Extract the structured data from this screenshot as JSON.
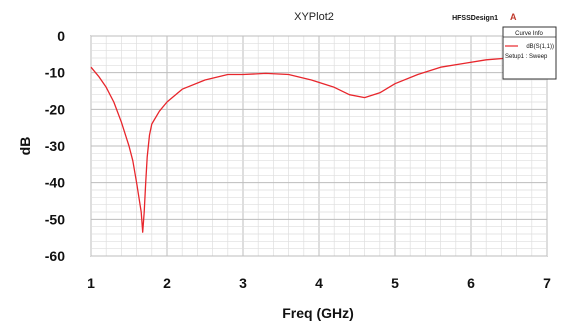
{
  "plot_title": "XYPlot2",
  "design_name": "HFSSDesign1",
  "logo_glyph": "A",
  "legend": {
    "header": "Curve Info",
    "entry_name": "dB(S(1,1))",
    "entry_sub": "Setup1 : Sweep"
  },
  "chart_data": {
    "type": "line",
    "title": "XYPlot2",
    "xlabel": "Freq  (GHz)",
    "ylabel": "dB",
    "xlim": [
      1,
      7
    ],
    "ylim": [
      -60,
      0
    ],
    "x_ticks": [
      "1",
      "2",
      "3",
      "4",
      "5",
      "6",
      "7"
    ],
    "y_ticks": [
      "0",
      "-10",
      "-20",
      "-30",
      "-40",
      "-50",
      "-60"
    ],
    "grid": true,
    "legend_position": "top-right",
    "series": [
      {
        "name": "dB(S(1,1))",
        "color": "#e8262c",
        "x": [
          1.0,
          1.1,
          1.2,
          1.3,
          1.4,
          1.5,
          1.55,
          1.6,
          1.63,
          1.66,
          1.68,
          1.7,
          1.72,
          1.74,
          1.77,
          1.8,
          1.9,
          2.0,
          2.2,
          2.5,
          2.8,
          3.0,
          3.3,
          3.6,
          3.9,
          4.2,
          4.4,
          4.6,
          4.8,
          5.0,
          5.3,
          5.6,
          5.9,
          6.2,
          6.5,
          6.8,
          7.0
        ],
        "y": [
          -8.5,
          -11,
          -14,
          -18,
          -23.5,
          -30,
          -34,
          -40,
          -44,
          -48,
          -53.5,
          -48,
          -40,
          -33,
          -27,
          -24,
          -20.5,
          -18,
          -14.5,
          -12,
          -10.5,
          -10.5,
          -10.2,
          -10.5,
          -12,
          -14,
          -16,
          -16.8,
          -15.5,
          -13,
          -10.5,
          -8.5,
          -7.5,
          -6.5,
          -6,
          -5.8,
          -5.8
        ]
      }
    ]
  }
}
